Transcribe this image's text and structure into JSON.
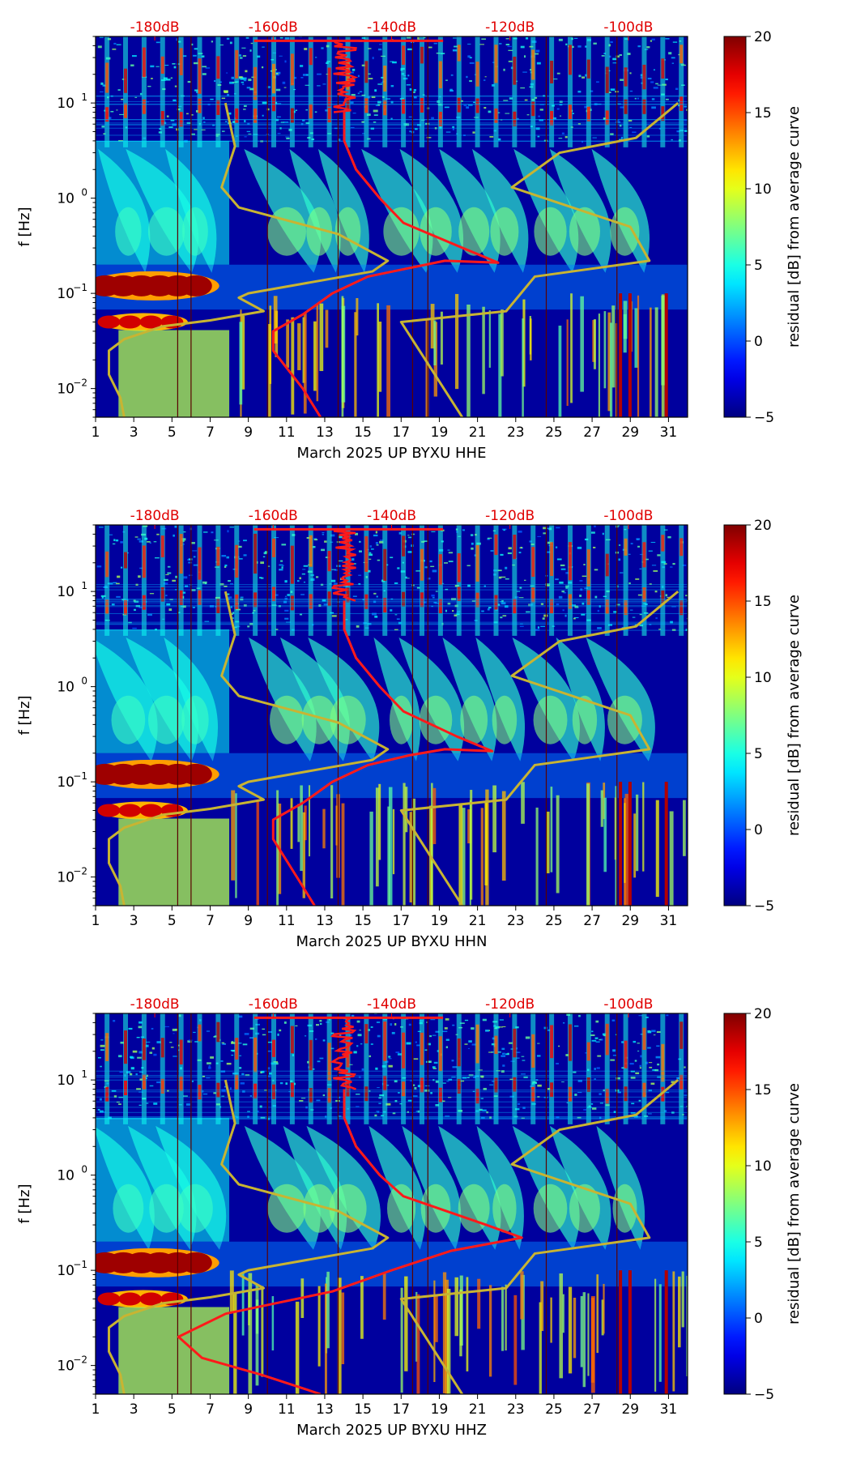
{
  "chart_data": [
    {
      "type": "spectrogram",
      "xlabel": "March 2025 UP BYXU  HHE",
      "ylabel": "f [Hz]",
      "x_ticks": [
        1,
        3,
        5,
        7,
        9,
        11,
        13,
        15,
        17,
        19,
        21,
        23,
        25,
        27,
        29,
        31
      ],
      "xlim": [
        1,
        32
      ],
      "y_scale": "log",
      "ylim": [
        0.005,
        50
      ],
      "y_ticks": [
        0.01,
        0.1,
        1,
        10
      ],
      "y_tick_labels": [
        {
          "base": "10",
          "exp": "−2"
        },
        {
          "base": "10",
          "exp": "−1"
        },
        {
          "base": "10",
          "exp": "0"
        },
        {
          "base": "10",
          "exp": "1"
        }
      ],
      "top_axis": {
        "label_color": "#ff0000",
        "ticks": [
          "-180dB",
          "-160dB",
          "-140dB",
          "-120dB",
          "-100dB"
        ],
        "range_db": [
          -190,
          -90
        ]
      },
      "colorbar": {
        "label": "residual [dB] from average curve",
        "range": [
          -5,
          20
        ],
        "ticks": [
          -5,
          0,
          5,
          10,
          15,
          20
        ]
      },
      "series": [
        {
          "name": "yellow envelope (left)",
          "color": "#c8b432",
          "x": [
            2.5,
            2.3,
            1.7,
            1.7,
            2.5,
            4.5,
            7.0,
            9.8,
            8.5,
            9.0,
            15.5,
            16.3,
            13.7,
            8.5,
            7.6,
            8.3,
            7.8
          ],
          "f": [
            0.005,
            0.008,
            0.014,
            0.025,
            0.033,
            0.045,
            0.052,
            0.065,
            0.09,
            0.1,
            0.17,
            0.22,
            0.42,
            0.8,
            1.3,
            3.5,
            10
          ]
        },
        {
          "name": "yellow envelope (right)",
          "color": "#c8b432",
          "x": [
            20.2,
            17.0,
            22.5,
            24.0,
            30.0,
            29.0,
            22.8,
            25.3,
            29.3,
            31.5
          ],
          "f": [
            0.005,
            0.05,
            0.065,
            0.15,
            0.22,
            0.5,
            1.3,
            3.0,
            4.3,
            10
          ]
        },
        {
          "name": "red reference curve",
          "color": "#ff1a1a",
          "db": [
            -152,
            -155,
            -160,
            -160,
            -155,
            -150,
            -144,
            -136,
            -131,
            -122,
            -128,
            -138,
            -142,
            -146,
            -148,
            -148
          ],
          "f": [
            0.005,
            0.01,
            0.025,
            0.04,
            0.06,
            0.1,
            0.15,
            0.19,
            0.22,
            0.21,
            0.3,
            0.55,
            1.0,
            2.0,
            4.0,
            8.0
          ]
        }
      ]
    },
    {
      "type": "spectrogram",
      "xlabel": "March 2025 UP BYXU  HHN",
      "ylabel": "f [Hz]",
      "x_ticks": [
        1,
        3,
        5,
        7,
        9,
        11,
        13,
        15,
        17,
        19,
        21,
        23,
        25,
        27,
        29,
        31
      ],
      "xlim": [
        1,
        32
      ],
      "y_scale": "log",
      "ylim": [
        0.005,
        50
      ],
      "y_ticks": [
        0.01,
        0.1,
        1,
        10
      ],
      "y_tick_labels": [
        {
          "base": "10",
          "exp": "−2"
        },
        {
          "base": "10",
          "exp": "−1"
        },
        {
          "base": "10",
          "exp": "0"
        },
        {
          "base": "10",
          "exp": "1"
        }
      ],
      "top_axis": {
        "label_color": "#ff0000",
        "ticks": [
          "-180dB",
          "-160dB",
          "-140dB",
          "-120dB",
          "-100dB"
        ],
        "range_db": [
          -190,
          -90
        ]
      },
      "colorbar": {
        "label": "residual [dB] from average curve",
        "range": [
          -5,
          20
        ],
        "ticks": [
          -5,
          0,
          5,
          10,
          15,
          20
        ]
      },
      "series": [
        {
          "name": "yellow envelope (left)",
          "color": "#c8b432",
          "x": [
            2.5,
            2.3,
            1.7,
            1.7,
            2.5,
            4.5,
            7.0,
            9.8,
            8.5,
            9.0,
            15.5,
            16.3,
            13.7,
            8.5,
            7.6,
            8.3,
            7.8
          ],
          "f": [
            0.005,
            0.008,
            0.014,
            0.025,
            0.033,
            0.045,
            0.052,
            0.065,
            0.09,
            0.1,
            0.17,
            0.22,
            0.42,
            0.8,
            1.3,
            3.5,
            10
          ]
        },
        {
          "name": "yellow envelope (right)",
          "color": "#c8b432",
          "x": [
            20.2,
            17.0,
            22.5,
            24.0,
            30.0,
            29.0,
            22.8,
            25.3,
            29.3,
            31.5
          ],
          "f": [
            0.005,
            0.05,
            0.065,
            0.15,
            0.22,
            0.5,
            1.3,
            3.0,
            4.3,
            10
          ]
        },
        {
          "name": "red reference curve",
          "color": "#ff1a1a",
          "db": [
            -153,
            -156,
            -160,
            -160,
            -155,
            -150,
            -144,
            -137,
            -131,
            -123,
            -129,
            -138,
            -142,
            -146,
            -148,
            -148
          ],
          "f": [
            0.005,
            0.01,
            0.025,
            0.04,
            0.06,
            0.1,
            0.15,
            0.19,
            0.22,
            0.21,
            0.3,
            0.55,
            1.0,
            2.0,
            4.0,
            8.0
          ]
        }
      ]
    },
    {
      "type": "spectrogram",
      "xlabel": "March 2025 UP BYXU  HHZ",
      "ylabel": "f [Hz]",
      "x_ticks": [
        1,
        3,
        5,
        7,
        9,
        11,
        13,
        15,
        17,
        19,
        21,
        23,
        25,
        27,
        29,
        31
      ],
      "xlim": [
        1,
        32
      ],
      "y_scale": "log",
      "ylim": [
        0.005,
        50
      ],
      "y_ticks": [
        0.01,
        0.1,
        1,
        10
      ],
      "y_tick_labels": [
        {
          "base": "10",
          "exp": "−2"
        },
        {
          "base": "10",
          "exp": "−1"
        },
        {
          "base": "10",
          "exp": "0"
        },
        {
          "base": "10",
          "exp": "1"
        }
      ],
      "top_axis": {
        "label_color": "#ff0000",
        "ticks": [
          "-180dB",
          "-160dB",
          "-140dB",
          "-120dB",
          "-100dB"
        ],
        "range_db": [
          -190,
          -90
        ]
      },
      "colorbar": {
        "label": "residual [dB] from average curve",
        "range": [
          -5,
          20
        ],
        "ticks": [
          -5,
          0,
          5,
          10,
          15,
          20
        ]
      },
      "series": [
        {
          "name": "yellow envelope (left)",
          "color": "#c8b432",
          "x": [
            2.5,
            2.3,
            1.7,
            1.7,
            2.5,
            4.5,
            7.0,
            9.8,
            8.5,
            9.0,
            15.5,
            16.3,
            13.7,
            8.5,
            7.6,
            8.3,
            7.8
          ],
          "f": [
            0.005,
            0.008,
            0.014,
            0.025,
            0.033,
            0.045,
            0.052,
            0.065,
            0.09,
            0.1,
            0.17,
            0.22,
            0.42,
            0.8,
            1.3,
            3.5,
            10
          ]
        },
        {
          "name": "yellow envelope (right)",
          "color": "#c8b432",
          "x": [
            20.2,
            17.0,
            22.5,
            24.0,
            30.0,
            29.0,
            22.8,
            25.3,
            29.3,
            31.5
          ],
          "f": [
            0.005,
            0.05,
            0.065,
            0.15,
            0.22,
            0.5,
            1.3,
            3.0,
            4.3,
            10
          ]
        },
        {
          "name": "red reference curve",
          "color": "#ff1a1a",
          "db": [
            -152,
            -162,
            -172,
            -176,
            -168,
            -150,
            -140,
            -130,
            -118,
            -124,
            -138,
            -142,
            -146,
            -148,
            -148
          ],
          "f": [
            0.005,
            0.008,
            0.012,
            0.02,
            0.035,
            0.06,
            0.1,
            0.16,
            0.22,
            0.3,
            0.6,
            1.0,
            2.0,
            4.0,
            8.0
          ]
        }
      ]
    }
  ]
}
